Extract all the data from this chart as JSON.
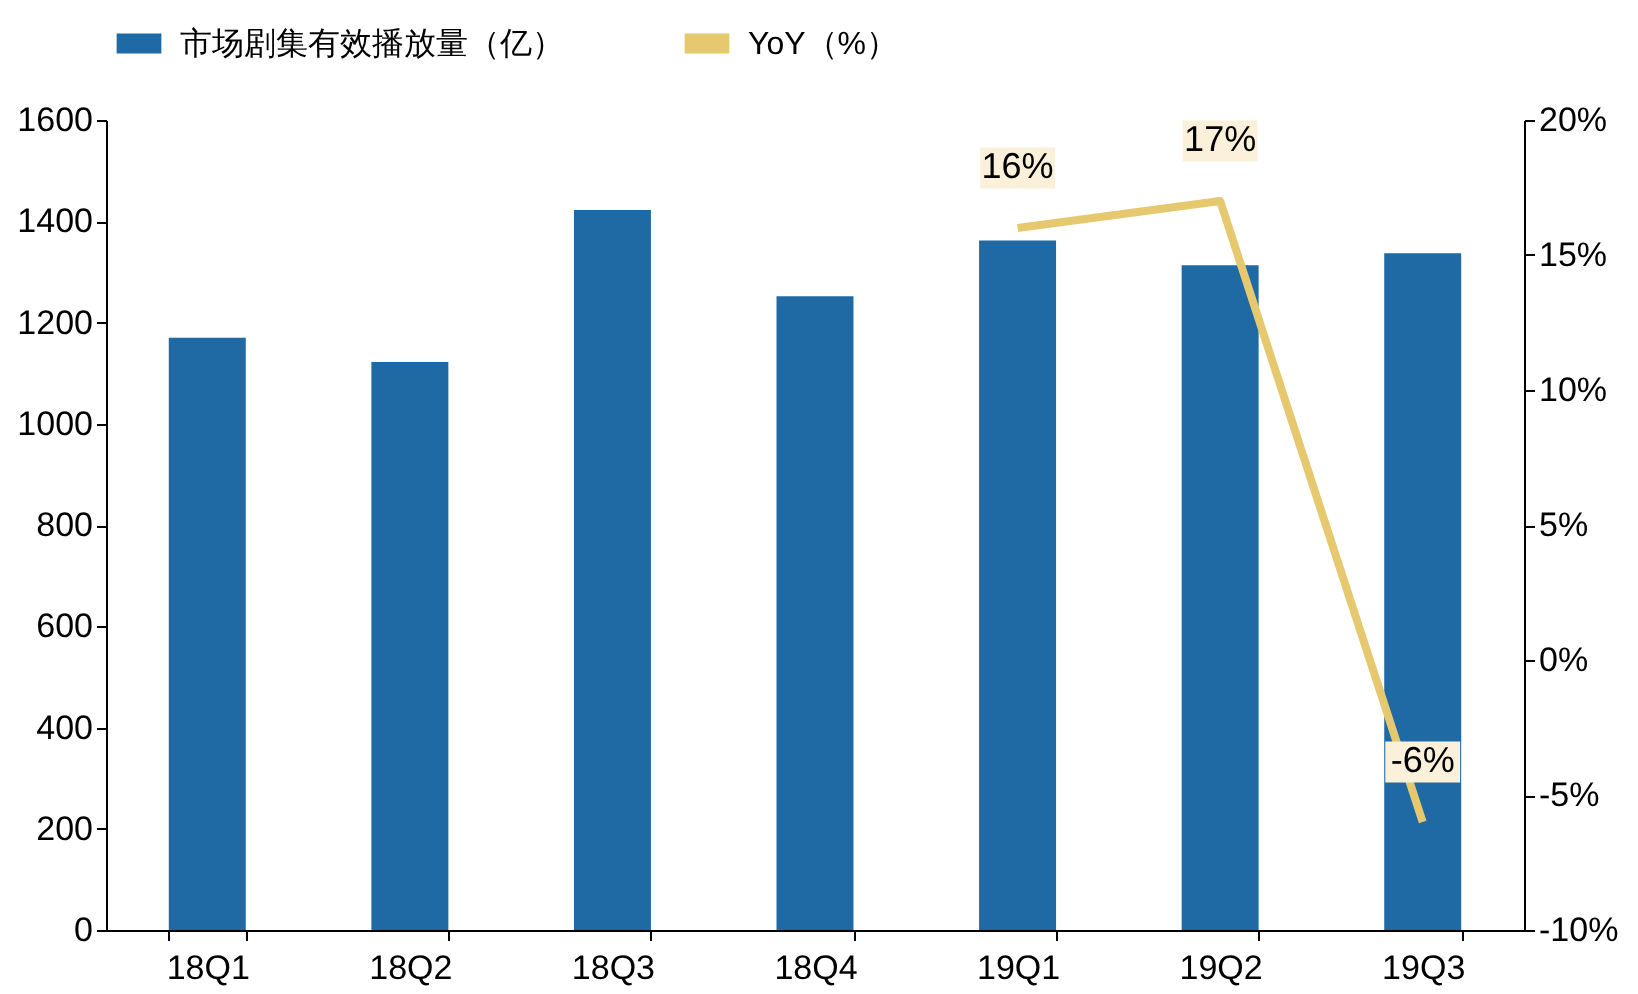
{
  "chart_data": {
    "type": "bar",
    "categories": [
      "18Q1",
      "18Q2",
      "18Q3",
      "18Q4",
      "19Q1",
      "19Q2",
      "19Q3"
    ],
    "series": [
      {
        "name": "市场剧集有效播放量（亿）",
        "color": "#1f6aa5",
        "values": [
          1170,
          1122,
          1422,
          1252,
          1362,
          1313,
          1337
        ]
      },
      {
        "name": "YoY（%）",
        "type": "line",
        "axis": "y2",
        "color": "#e6c86e",
        "values": [
          null,
          null,
          null,
          null,
          16,
          17,
          -6
        ],
        "value_labels": [
          null,
          null,
          null,
          null,
          "16%",
          "17%",
          "-6%"
        ]
      }
    ],
    "ylim": [
      0,
      1600
    ],
    "yticks": [
      0,
      200,
      400,
      600,
      800,
      1000,
      1200,
      1400,
      1600
    ],
    "y2lim": [
      -10,
      20
    ],
    "y2ticks": [
      {
        "value": -10,
        "label": "-10%"
      },
      {
        "value": -5,
        "label": "-5%"
      },
      {
        "value": 0,
        "label": "0%"
      },
      {
        "value": 5,
        "label": "5%"
      },
      {
        "value": 10,
        "label": "10%"
      },
      {
        "value": 15,
        "label": "15%"
      },
      {
        "value": 20,
        "label": "20%"
      }
    ],
    "legend": "top",
    "line_style": "solid"
  }
}
